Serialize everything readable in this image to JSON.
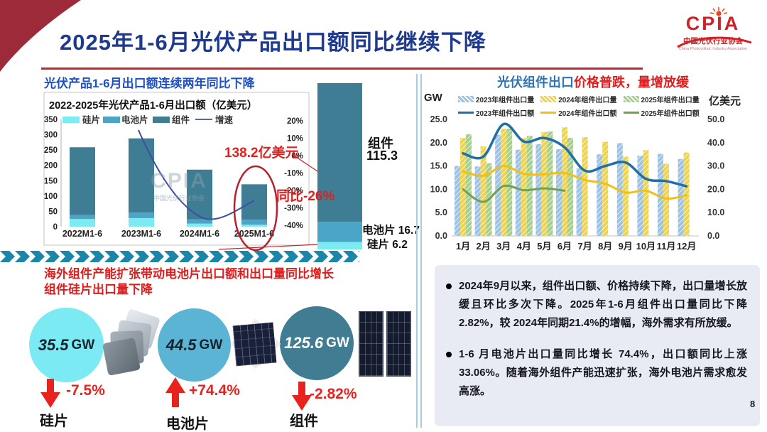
{
  "slide": {
    "title": "2025年1-6月光伏产品出口额同比继续下降",
    "page_number": "8"
  },
  "logo": {
    "acronym": "CPIA",
    "name_cn": "中国光伏行业协会",
    "name_en": "China Photovoltaic Industry Association"
  },
  "left_panel": {
    "heading": "光伏产品1-6月出口额连续两年同比下降",
    "watermark_text": "CPIA",
    "watermark_sub": "中国光伏行业协会",
    "annotation_value": "138.2亿美元",
    "annotation_yoy": "同比-26%",
    "zoom_bar": {
      "module_label": "组件",
      "module_value": "115.3",
      "cell_label": "电池片 16.7",
      "wafer_label": "硅片 6.2"
    }
  },
  "bottom_left": {
    "heading_line1": "海外组件产能扩张带动电池片出口额和出口量同比增长",
    "heading_line2": "组件硅片出口量下降",
    "items": [
      {
        "value": "35.5",
        "unit": "GW",
        "change": "-7.5%",
        "direction": "down",
        "label": "硅片"
      },
      {
        "value": "44.5",
        "unit": "GW",
        "change": "+74.4%",
        "direction": "up",
        "label": "电池片"
      },
      {
        "value": "125.6",
        "unit": "GW",
        "change": "-2.82%",
        "direction": "down",
        "label": "组件"
      }
    ]
  },
  "right_panel": {
    "heading_blue": "光伏组件出口",
    "heading_red": "价格普跌，量增放缓",
    "y_left_label": "GW",
    "y_right_label": "亿美元",
    "bullets": [
      "2024年9月以来，组件出口额、价格持续下降，出口量增长放缓且环比多次下降。2025年1-6月组件出口量同比下降2.82%，较 2024年同期21.4%的增幅，海外需求有所放缓。",
      "1-6 月电池片出口量同比增长 74.4%，出口额同比上涨33.06%。随着海外组件产能迅速扩张，海外电池片需求愈发高涨。"
    ]
  },
  "chart_data": [
    {
      "type": "bar",
      "subtype": "stacked-bar-with-line",
      "title": "2022-2025年光伏产品1-6月出口额（亿美元）",
      "categories": [
        "2022M1-6",
        "2023M1-6",
        "2024M1-6",
        "2025M1-6"
      ],
      "series": [
        {
          "name": "硅片",
          "type": "bar",
          "color": "#7debf2",
          "values": [
            25,
            28,
            10,
            6.2
          ]
        },
        {
          "name": "电池片",
          "type": "bar",
          "color": "#4aa5c6",
          "values": [
            13,
            18,
            14,
            16.7
          ]
        },
        {
          "name": "组件",
          "type": "bar",
          "color": "#3e7d93",
          "values": [
            221,
            242,
            162,
            115.3
          ]
        },
        {
          "name": "增速",
          "type": "line",
          "color": "#3f4fa0",
          "values": [
            113,
            11,
            -35,
            -26
          ]
        }
      ],
      "totals": [
        259,
        288,
        186,
        138.2
      ],
      "y_left": {
        "ticks": [
          350,
          300,
          250,
          200,
          150,
          100,
          50,
          0
        ],
        "max": 350,
        "min": 0
      },
      "y_right": {
        "ticks": [
          "20%",
          "10%",
          "0%",
          "-10%",
          "-20%",
          "-30%",
          "-40%"
        ],
        "max": 20,
        "min": -40
      },
      "legend_position": "top",
      "grid": false
    },
    {
      "type": "bar",
      "subtype": "grouped-bar-with-lines",
      "categories": [
        "1月",
        "2月",
        "3月",
        "4月",
        "5月",
        "6月",
        "7月",
        "8月",
        "9月",
        "10月",
        "11月",
        "12月"
      ],
      "y_left": {
        "label": "GW",
        "ticks": [
          "25.0",
          "20.0",
          "15.0",
          "10.0",
          "5.0",
          "0.0"
        ],
        "max": 25,
        "min": 0
      },
      "y_right": {
        "label": "亿美元",
        "ticks": [
          "50.0",
          "40.0",
          "30.0",
          "20.0",
          "10.0",
          "0.0"
        ],
        "max": 50,
        "min": 0
      },
      "series": [
        {
          "name": "2023年组件出口量",
          "type": "bar",
          "axis": "left",
          "color": "#9cc3e5",
          "values": [
            15,
            14.9,
            21.7,
            18.5,
            19.7,
            18.6,
            14.5,
            17.5,
            19.9,
            17.2,
            17.6,
            16.5
          ]
        },
        {
          "name": "2024年组件出口量",
          "type": "bar",
          "axis": "left",
          "color": "#eed34f",
          "values": [
            21,
            19.2,
            23,
            21,
            22.3,
            23.3,
            21.2,
            20.2,
            17,
            18.4,
            15.5,
            17.9
          ]
        },
        {
          "name": "2025年组件出口量",
          "type": "bar",
          "axis": "left",
          "color": "#a6cf8d",
          "values": [
            21.8,
            15.6,
            23,
            21.5,
            22.4,
            21,
            null,
            null,
            null,
            null,
            null,
            null
          ]
        },
        {
          "name": "2023年组件出口额",
          "type": "line",
          "axis": "right",
          "color": "#1f6fa8",
          "values": [
            35.4,
            34,
            48,
            40.5,
            42,
            38,
            28,
            30,
            31.5,
            24.5,
            23.5,
            21.3
          ]
        },
        {
          "name": "2024年组件出口额",
          "type": "line",
          "axis": "right",
          "color": "#efc01a",
          "values": [
            27.6,
            25.8,
            30,
            26.6,
            26.4,
            27,
            24,
            22.4,
            18.6,
            19.4,
            16,
            17.4
          ]
        },
        {
          "name": "2025年组件出口额",
          "type": "line",
          "axis": "right",
          "color": "#70a053",
          "values": [
            20,
            14.6,
            21.4,
            19.6,
            20.4,
            19.4,
            null,
            null,
            null,
            null,
            null,
            null
          ]
        }
      ],
      "legend_position": "top",
      "grid": false
    }
  ]
}
